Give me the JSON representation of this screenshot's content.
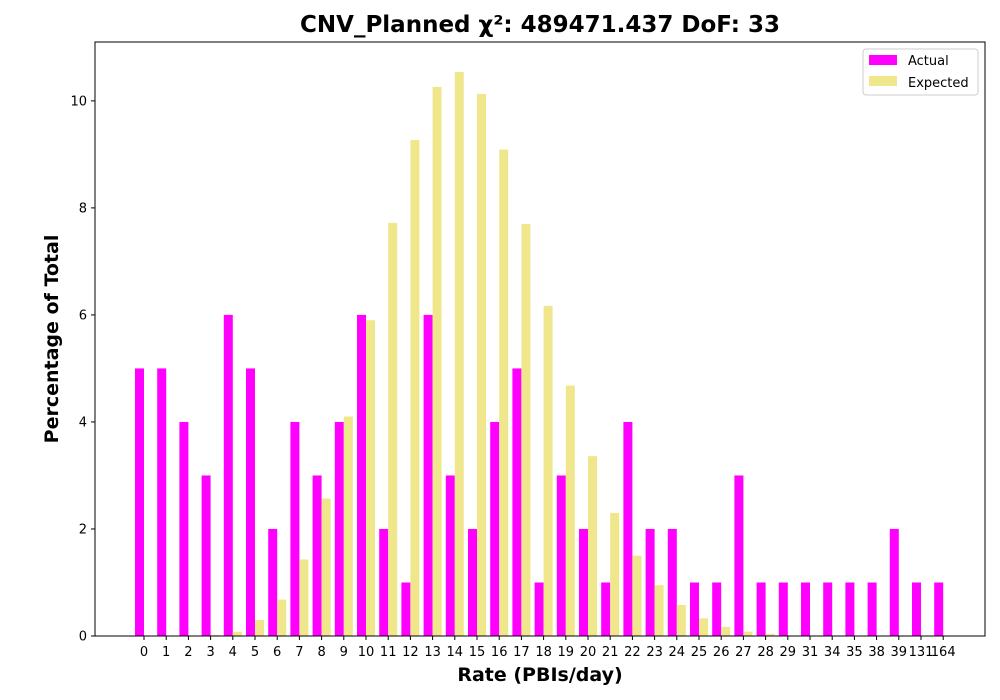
{
  "chart_data": {
    "type": "bar",
    "title": "CNV_Planned χ²: 489471.437 DoF: 33",
    "xlabel": "Rate (PBIs/day)",
    "ylabel": "Percentage of Total",
    "ylim": [
      0,
      11.1
    ],
    "yticks": [
      "0",
      "2",
      "4",
      "6",
      "8",
      "10"
    ],
    "categories": [
      "0",
      "1",
      "2",
      "3",
      "4",
      "5",
      "6",
      "7",
      "8",
      "9",
      "10",
      "11",
      "12",
      "13",
      "14",
      "15",
      "16",
      "17",
      "18",
      "19",
      "20",
      "21",
      "22",
      "23",
      "24",
      "25",
      "26",
      "27",
      "28",
      "29",
      "31",
      "34",
      "35",
      "38",
      "39",
      "131",
      "164"
    ],
    "series": [
      {
        "name": "Actual",
        "color": "#ff00ff",
        "values": [
          5,
          5,
          4,
          3,
          6,
          5,
          2,
          4,
          3,
          4,
          6,
          2,
          1,
          6,
          3,
          2,
          4,
          5,
          1,
          3,
          2,
          1,
          4,
          2,
          2,
          1,
          1,
          3,
          1,
          1,
          1,
          1,
          1,
          1,
          2,
          1,
          1
        ]
      },
      {
        "name": "Expected",
        "color": "#f0e68c",
        "values": [
          0,
          0,
          0,
          0.02,
          0.08,
          0.3,
          0.68,
          1.43,
          2.57,
          4.1,
          5.9,
          7.72,
          9.27,
          10.26,
          10.54,
          10.13,
          9.09,
          7.7,
          6.17,
          4.68,
          3.36,
          2.3,
          1.5,
          0.95,
          0.58,
          0.33,
          0.17,
          0.08,
          0.04,
          0,
          0,
          0,
          0,
          0,
          0,
          0,
          0
        ]
      }
    ],
    "legend": {
      "position": "top-right",
      "entries": [
        "Actual",
        "Expected"
      ]
    },
    "grid": false
  }
}
